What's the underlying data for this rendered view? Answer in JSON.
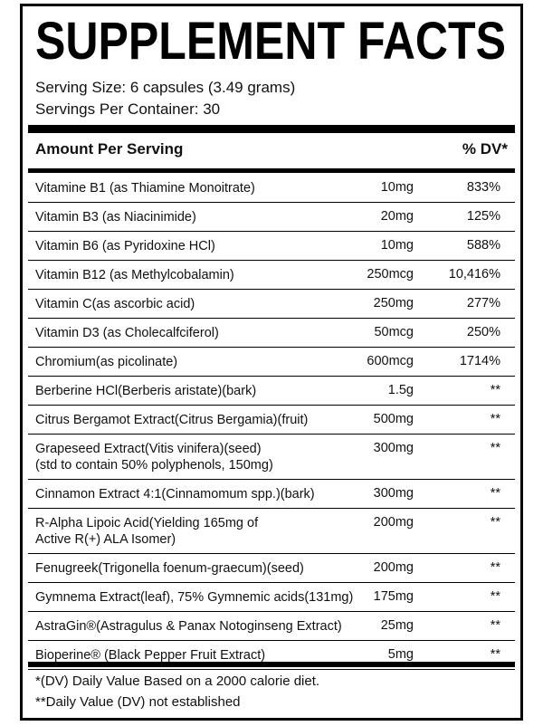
{
  "header": {
    "title": "SUPPLEMENT FACTS",
    "serving_size": "Serving Size: 6 capsules (3.49 grams)",
    "servings_per_container": "Servings Per Container: 30"
  },
  "table": {
    "columns": [
      "Amount Per Serving",
      "% DV*"
    ],
    "rows": [
      {
        "name": [
          "Vitamine B1 (as Thiamine Monoitrate)"
        ],
        "amount": "10mg",
        "dv": "833%"
      },
      {
        "name": [
          "Vitamin B3 (as Niacinimide)"
        ],
        "amount": "20mg",
        "dv": "125%"
      },
      {
        "name": [
          "Vitamin B6 (as Pyridoxine HCl)"
        ],
        "amount": "10mg",
        "dv": "588%"
      },
      {
        "name": [
          "Vitamin B12 (as Methylcobalamin)"
        ],
        "amount": "250mcg",
        "dv": "10,416%"
      },
      {
        "name": [
          "Vitamin C(as ascorbic acid)"
        ],
        "amount": "250mg",
        "dv": "277%"
      },
      {
        "name": [
          "Vitamin D3  (as Cholecalfciferol)"
        ],
        "amount": "50mcg",
        "dv": "250%"
      },
      {
        "name": [
          "Chromium(as picolinate)"
        ],
        "amount": "600mcg",
        "dv": "1714%"
      },
      {
        "name": [
          "Berberine HCl(Berberis aristate)(bark)"
        ],
        "amount": "1.5g",
        "dv": "**"
      },
      {
        "name": [
          "Citrus Bergamot Extract(Citrus Bergamia)(fruit)"
        ],
        "amount": "500mg",
        "dv": "**"
      },
      {
        "name": [
          "Grapeseed Extract(Vitis vinifera)(seed)",
          "(std to contain 50% polyphenols, 150mg)"
        ],
        "amount": "300mg",
        "dv": "**"
      },
      {
        "name": [
          "Cinnamon Extract 4:1(Cinnamomum spp.)(bark)"
        ],
        "amount": "300mg",
        "dv": "**"
      },
      {
        "name": [
          "R-Alpha Lipoic Acid(Yielding 165mg of",
          "Active R(+) ALA Isomer)"
        ],
        "amount": "200mg",
        "dv": "**"
      },
      {
        "name": [
          "Fenugreek(Trigonella foenum-graecum)(seed)"
        ],
        "amount": "200mg",
        "dv": "**"
      },
      {
        "name": [
          "Gymnema Extract(leaf), 75% Gymnemic acids(131mg)"
        ],
        "amount": "175mg",
        "dv": "**"
      },
      {
        "name": [
          "AstraGin®(Astragulus & Panax Notoginseng Extract)"
        ],
        "amount": "25mg",
        "dv": "**"
      },
      {
        "name": [
          "Bioperine® (Black Pepper Fruit Extract)"
        ],
        "amount": "5mg",
        "dv": "**"
      }
    ]
  },
  "footer": {
    "note1": "*(DV) Daily Value Based on a 2000 calorie diet.",
    "note2": "**Daily Value (DV) not established"
  }
}
